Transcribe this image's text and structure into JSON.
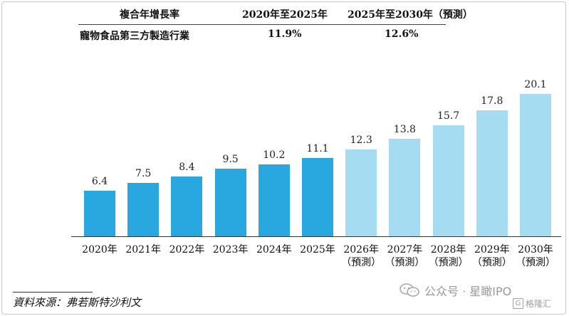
{
  "cagr_table": {
    "header_label": "複合年增長率",
    "period1_label": "2020年至2025年",
    "period2_label": "2025年至2030年（預測）",
    "row_label": "寵物食品第三方製造行業",
    "period1_value": "11.9%",
    "period2_value": "12.6%"
  },
  "chart_data": {
    "type": "bar",
    "categories": [
      "2020年",
      "2021年",
      "2022年",
      "2023年",
      "2024年",
      "2025年",
      "2026年",
      "2027年",
      "2028年",
      "2029年",
      "2030年"
    ],
    "category_sublabels": [
      "",
      "",
      "",
      "",
      "",
      "",
      "（預測）",
      "（預測）",
      "（預測）",
      "（預測）",
      "（預測）"
    ],
    "values": [
      6.4,
      7.5,
      8.4,
      9.5,
      10.2,
      11.1,
      12.3,
      13.8,
      15.7,
      17.8,
      20.1
    ],
    "value_labels": [
      "6.4",
      "7.5",
      "8.4",
      "9.5",
      "10.2",
      "11.1",
      "12.3",
      "13.8",
      "15.7",
      "17.8",
      "20.1"
    ],
    "forecast": [
      false,
      false,
      false,
      false,
      false,
      false,
      true,
      true,
      true,
      true,
      true
    ],
    "colors": {
      "actual": "#29a8e0",
      "forecast": "#a6dcf2"
    },
    "ylim": [
      0,
      20.1
    ],
    "title": "",
    "xlabel": "",
    "ylabel": ""
  },
  "footer": {
    "source": "資料來源：弗若斯特沙利文"
  },
  "watermark": {
    "icon": "wechat-icon",
    "text": "公众号 · 星瞰IPO",
    "badge_text": "格隆汇",
    "badge_icon": "g-logo-icon"
  }
}
